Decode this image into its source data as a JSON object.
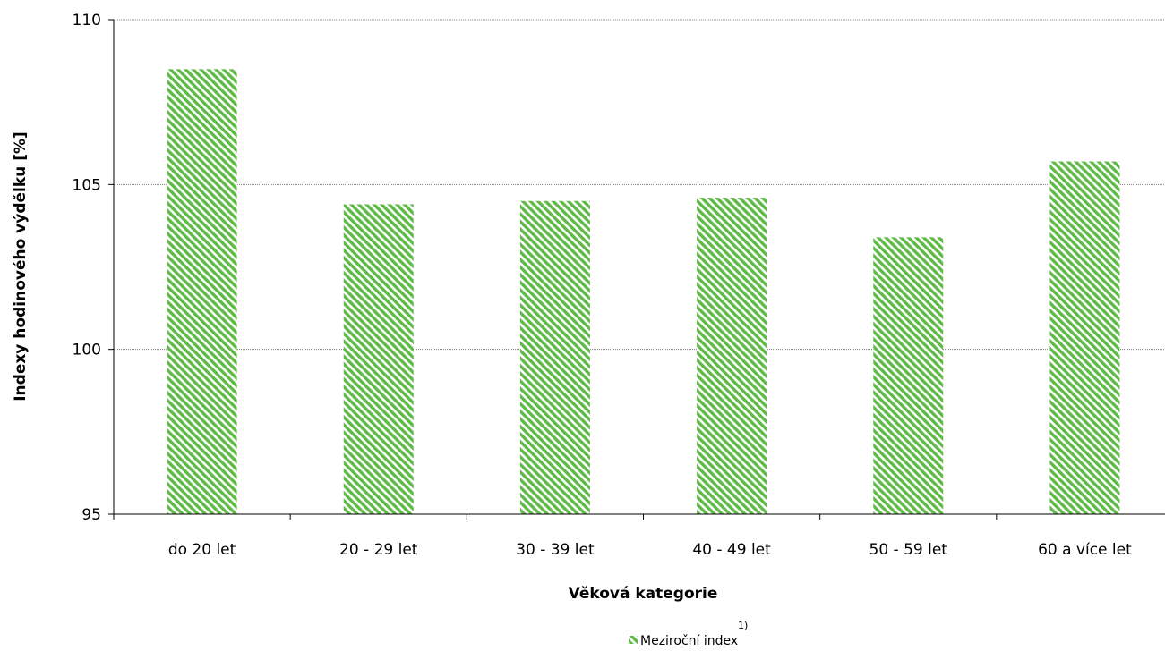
{
  "chart_data": {
    "type": "bar",
    "title": "",
    "xlabel": "Věková kategorie",
    "ylabel": "Indexy hodinového výdělku [%]",
    "categories": [
      "do 20 let",
      "20 - 29 let",
      "30 - 39 let",
      "40 - 49 let",
      "50 - 59 let",
      "60 a více let"
    ],
    "series": [
      {
        "name": "Meziroční index",
        "values": [
          108.5,
          104.4,
          104.5,
          104.6,
          103.4,
          105.7
        ]
      }
    ],
    "legend_note": "1)",
    "ylim": [
      95,
      110
    ],
    "yticks": [
      "95",
      "100",
      "105",
      "110"
    ],
    "grid": true,
    "legend_position": "bottom",
    "colors": {
      "bar_fill": "#5fba46",
      "bar_background": "#ffffff",
      "grid": "#808080",
      "axis": "#000000"
    }
  }
}
